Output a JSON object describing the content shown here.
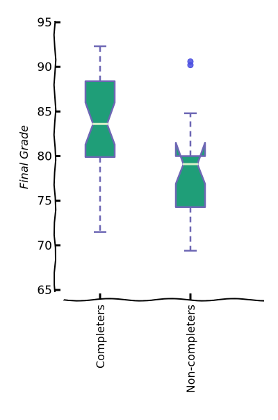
{
  "chart_data": {
    "type": "boxplot",
    "title": "",
    "xlabel": "",
    "ylabel": "Final Grade",
    "ylim": [
      65,
      95
    ],
    "yticks": [
      "65",
      "70",
      "75",
      "80",
      "85",
      "90",
      "95"
    ],
    "notched": true,
    "grid": false,
    "style": "xkcd",
    "categories": [
      "Completers",
      "Non-completers"
    ],
    "boxes": [
      {
        "category": "Completers",
        "whisker_low": 71.5,
        "q1": 79.9,
        "median": 83.6,
        "q3": 88.4,
        "whisker_high": 92.3,
        "notch_low": 81.3,
        "notch_high": 86.0,
        "outliers": []
      },
      {
        "category": "Non-completers",
        "whisker_low": 69.4,
        "q1": 74.3,
        "median": 79.1,
        "q3": 80.0,
        "whisker_high": 84.8,
        "notch_low": 76.9,
        "notch_high": 81.5,
        "outliers": [
          90.2,
          90.6
        ]
      }
    ],
    "colors": {
      "box_fill": "#1f9e78",
      "box_edge": "#6d67b4",
      "whisker": "#6d67b4",
      "median": "#d8f0c8",
      "outlier": "#4a4ee0",
      "axis": "#000000"
    }
  }
}
